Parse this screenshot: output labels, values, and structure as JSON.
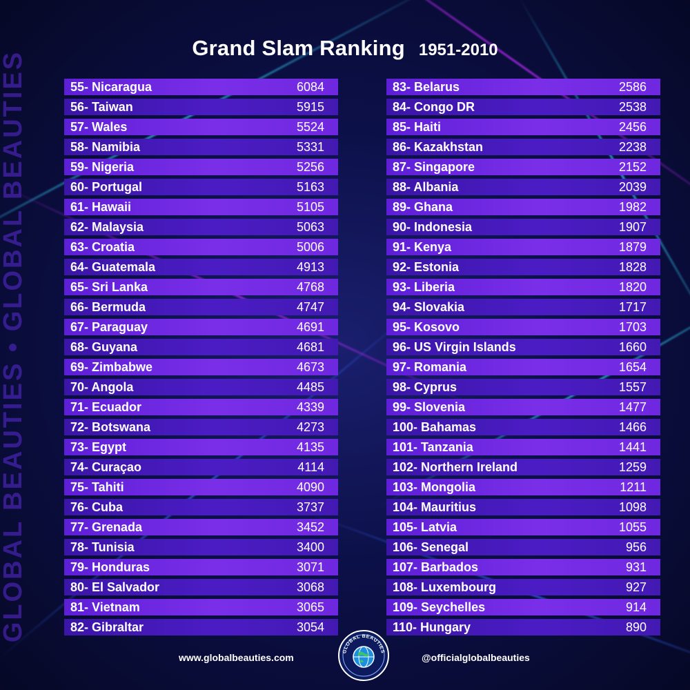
{
  "title": {
    "main": "Grand Slam Ranking",
    "years": "1951-2010"
  },
  "watermark": "GLOBAL BEAUTIES • GLOBAL BEAUTIES",
  "colors": {
    "row_light": "#6e28df",
    "row_dark": "#4319b3",
    "background": "#0a0d3a",
    "text": "#ffffff"
  },
  "left_rows": [
    {
      "label": "55- Nicaragua",
      "value": "6084"
    },
    {
      "label": "56- Taiwan",
      "value": "5915"
    },
    {
      "label": "57- Wales",
      "value": "5524"
    },
    {
      "label": "58- Namibia",
      "value": "5331"
    },
    {
      "label": "59- Nigeria",
      "value": "5256"
    },
    {
      "label": "60- Portugal",
      "value": "5163"
    },
    {
      "label": "61- Hawaii",
      "value": "5105"
    },
    {
      "label": "62- Malaysia",
      "value": "5063"
    },
    {
      "label": "63- Croatia",
      "value": "5006"
    },
    {
      "label": "64- Guatemala",
      "value": "4913"
    },
    {
      "label": "65- Sri Lanka",
      "value": "4768"
    },
    {
      "label": "66- Bermuda",
      "value": "4747"
    },
    {
      "label": "67- Paraguay",
      "value": "4691"
    },
    {
      "label": "68- Guyana",
      "value": "4681"
    },
    {
      "label": "69- Zimbabwe",
      "value": "4673"
    },
    {
      "label": "70- Angola",
      "value": "4485"
    },
    {
      "label": "71- Ecuador",
      "value": "4339"
    },
    {
      "label": "72- Botswana",
      "value": "4273"
    },
    {
      "label": "73- Egypt",
      "value": "4135"
    },
    {
      "label": "74- Curaçao",
      "value": "4114"
    },
    {
      "label": "75- Tahiti",
      "value": "4090"
    },
    {
      "label": "76- Cuba",
      "value": "3737"
    },
    {
      "label": "77- Grenada",
      "value": "3452"
    },
    {
      "label": "78- Tunisia",
      "value": "3400"
    },
    {
      "label": "79- Honduras",
      "value": "3071"
    },
    {
      "label": "80- El Salvador",
      "value": "3068"
    },
    {
      "label": "81- Vietnam",
      "value": "3065"
    },
    {
      "label": "82- Gibraltar",
      "value": "3054"
    }
  ],
  "right_rows": [
    {
      "label": "83- Belarus",
      "value": "2586"
    },
    {
      "label": "84- Congo DR",
      "value": "2538"
    },
    {
      "label": "85- Haiti",
      "value": "2456"
    },
    {
      "label": "86- Kazakhstan",
      "value": "2238"
    },
    {
      "label": "87- Singapore",
      "value": "2152"
    },
    {
      "label": "88- Albania",
      "value": "2039"
    },
    {
      "label": "89- Ghana",
      "value": "1982"
    },
    {
      "label": "90- Indonesia",
      "value": "1907"
    },
    {
      "label": "91- Kenya",
      "value": "1879"
    },
    {
      "label": "92- Estonia",
      "value": "1828"
    },
    {
      "label": "93- Liberia",
      "value": "1820"
    },
    {
      "label": "94- Slovakia",
      "value": "1717"
    },
    {
      "label": "95- Kosovo",
      "value": "1703"
    },
    {
      "label": "96- US Virgin Islands",
      "value": "1660"
    },
    {
      "label": "97- Romania",
      "value": "1654"
    },
    {
      "label": "98- Cyprus",
      "value": "1557"
    },
    {
      "label": "99- Slovenia",
      "value": "1477"
    },
    {
      "label": "100- Bahamas",
      "value": "1466"
    },
    {
      "label": "101- Tanzania",
      "value": "1441"
    },
    {
      "label": "102- Northern Ireland",
      "value": "1259"
    },
    {
      "label": "103- Mongolia",
      "value": "1211"
    },
    {
      "label": "104- Mauritius",
      "value": "1098"
    },
    {
      "label": "105- Latvia",
      "value": "1055"
    },
    {
      "label": "106- Senegal",
      "value": "956"
    },
    {
      "label": "107- Barbados",
      "value": "931"
    },
    {
      "label": "108- Luxembourg",
      "value": "927"
    },
    {
      "label": "109- Seychelles",
      "value": "914"
    },
    {
      "label": "110- Hungary",
      "value": "890"
    }
  ],
  "footer": {
    "website": "www.globalbeauties.com",
    "handle": "@officialglobalbeauties",
    "logo_text": "GLOBAL BEAUTIES",
    "logo_icon": "globe-icon"
  }
}
